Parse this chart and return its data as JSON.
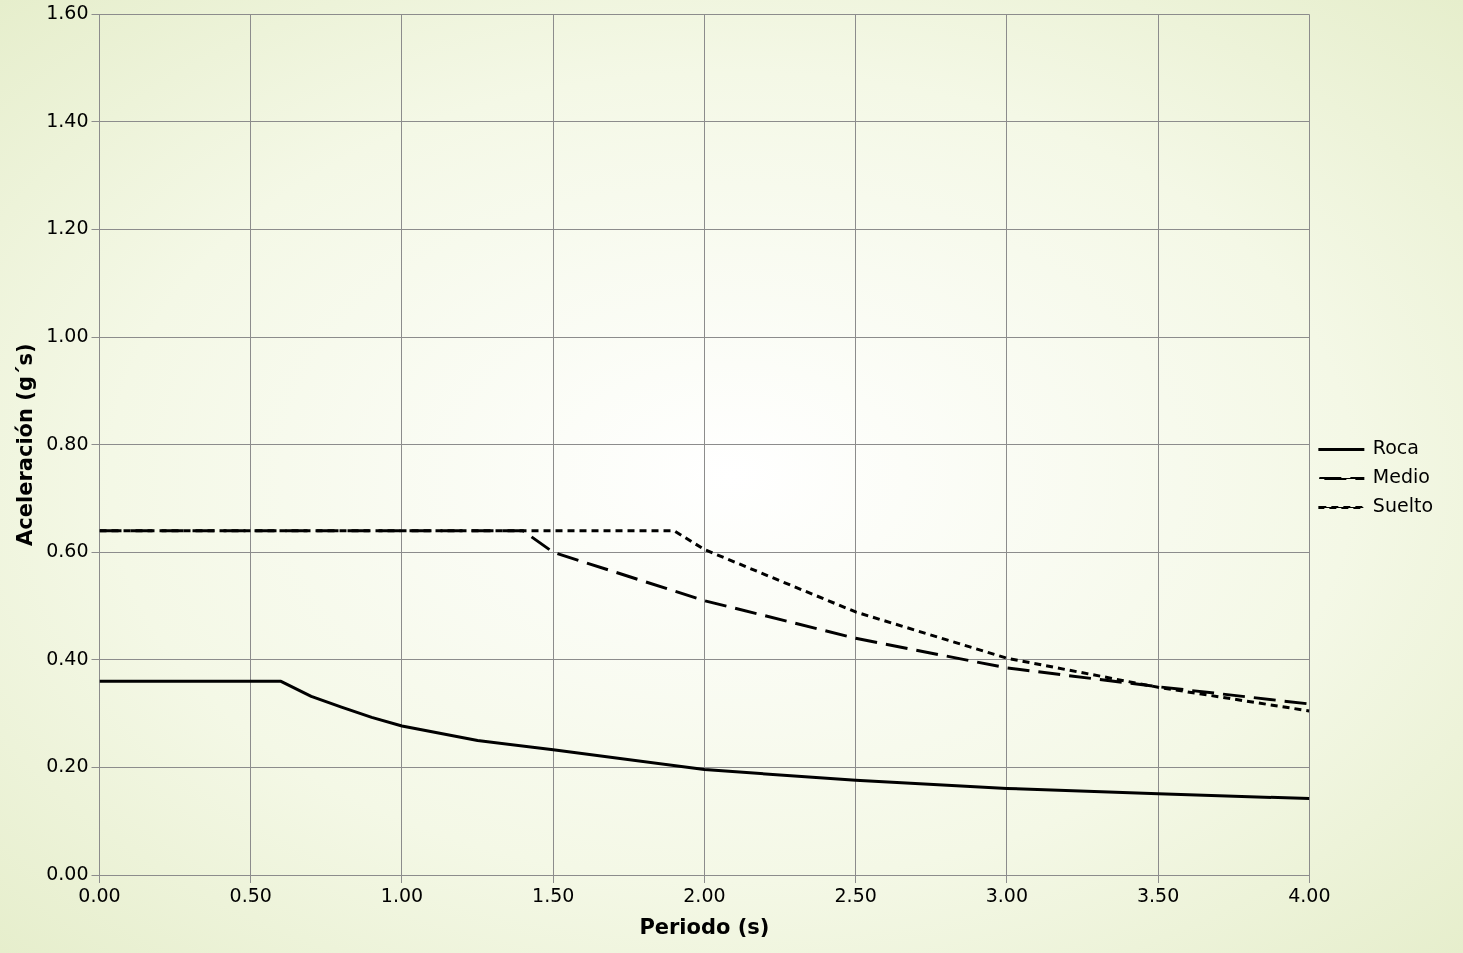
{
  "chart_data": {
    "type": "line",
    "xlabel": "Periodo (s)",
    "ylabel": "Aceleración (g´s)",
    "xlim": [
      0,
      4
    ],
    "xticks": [
      {
        "value": 0,
        "label": "0.00"
      },
      {
        "value": 0.5,
        "label": "0.50"
      },
      {
        "value": 1,
        "label": "1.00"
      },
      {
        "value": 1.5,
        "label": "1.50"
      },
      {
        "value": 2,
        "label": "2.00"
      },
      {
        "value": 2.5,
        "label": "2.50"
      },
      {
        "value": 3,
        "label": "3.00"
      },
      {
        "value": 3.5,
        "label": "3.50"
      },
      {
        "value": 4,
        "label": "4.00"
      }
    ],
    "ylim": [
      0,
      1.6
    ],
    "yticks": [
      {
        "value": 0,
        "label": "0.00"
      },
      {
        "value": 0.2,
        "label": "0.20"
      },
      {
        "value": 0.4,
        "label": "0.40"
      },
      {
        "value": 0.6,
        "label": "0.60"
      },
      {
        "value": 0.8,
        "label": "0.80"
      },
      {
        "value": 1,
        "label": "1.00"
      },
      {
        "value": 1.2,
        "label": "1.20"
      },
      {
        "value": 1.4,
        "label": "1.40"
      },
      {
        "value": 1.6,
        "label": "1.60"
      }
    ],
    "grid": true,
    "legend": "right",
    "marker": "none",
    "series": [
      {
        "name": "Roca",
        "color": "#000000",
        "line_style": "solid",
        "x": [
          0,
          0.6,
          0.7,
          0.8,
          0.9,
          1.0,
          1.25,
          1.5,
          2.0,
          2.5,
          3.0,
          3.5,
          4.0
        ],
        "values": [
          0.36,
          0.36,
          0.332,
          0.312,
          0.293,
          0.277,
          0.25,
          0.233,
          0.196,
          0.176,
          0.161,
          0.151,
          0.142
        ]
      },
      {
        "name": "Medio",
        "color": "#000000",
        "line_style": "dashed",
        "x": [
          0,
          1.4,
          1.5,
          2.0,
          2.5,
          3.0,
          3.5,
          4.0
        ],
        "values": [
          0.64,
          0.64,
          0.6,
          0.51,
          0.44,
          0.385,
          0.35,
          0.318
        ]
      },
      {
        "name": "Suelto",
        "color": "#000000",
        "line_style": "dotted",
        "x": [
          0,
          1.9,
          2.0,
          2.5,
          3.0,
          3.5,
          4.0
        ],
        "values": [
          0.64,
          0.64,
          0.605,
          0.489,
          0.403,
          0.349,
          0.305
        ]
      }
    ]
  }
}
